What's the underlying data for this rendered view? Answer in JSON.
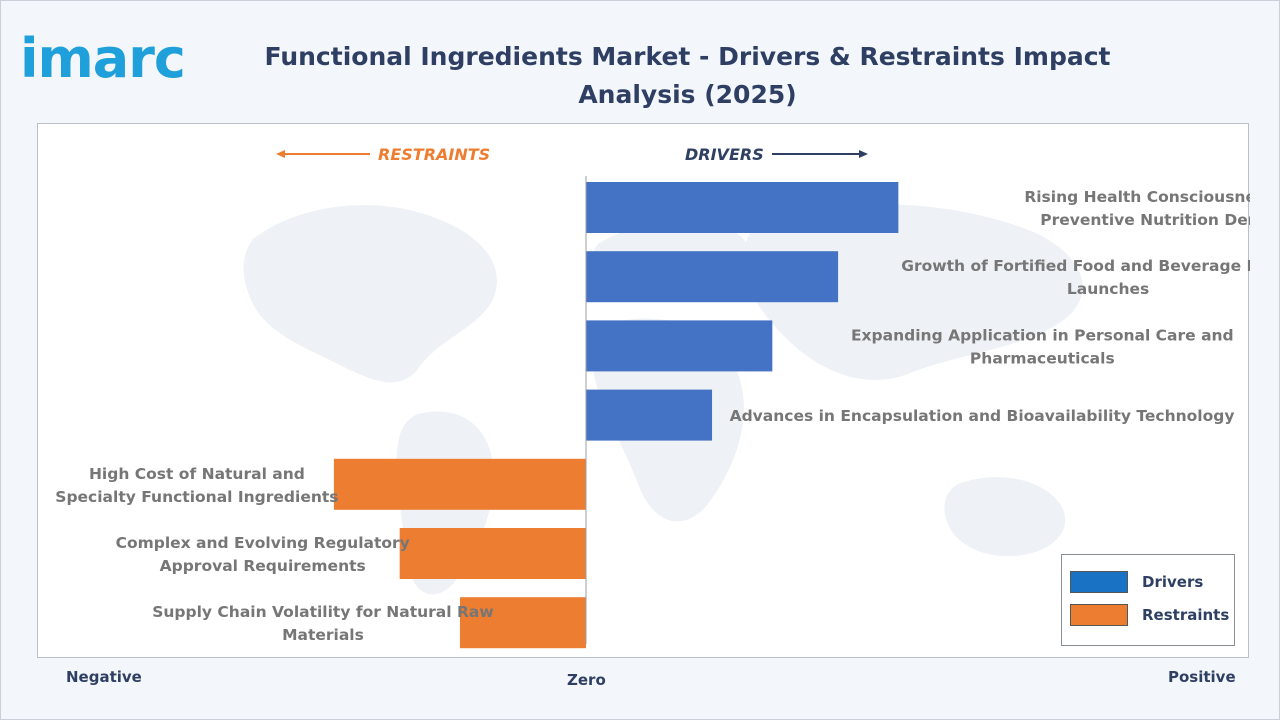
{
  "brand": {
    "logo_text": "imarc"
  },
  "title": "Functional Ingredients Market - Drivers & Restraints Impact Analysis (2025)",
  "direction_labels": {
    "restraints": "RESTRAINTS",
    "drivers": "DRIVERS"
  },
  "axis_labels": {
    "negative": "Negative",
    "zero": "Zero",
    "positive": "Positive"
  },
  "legend": [
    {
      "label": "Drivers",
      "color": "#1a72c4"
    },
    {
      "label": "Restraints",
      "color": "#ed7d31"
    }
  ],
  "colors": {
    "drivers": "#4472c4",
    "restraints": "#ed7d31",
    "arrow_drivers": "#2e3f63",
    "arrow_restraints": "#ed7d31"
  },
  "chart_data": {
    "type": "bar",
    "orientation": "horizontal",
    "title": "Functional Ingredients Market - Drivers & Restraints Impact Analysis (2025)",
    "xlabel_negative": "Negative",
    "xlabel_zero": "Zero",
    "xlabel_positive": "Positive",
    "grid": false,
    "legend_position": "bottom-right",
    "xlim": [
      -1,
      1
    ],
    "series": [
      {
        "name": "Drivers",
        "items": [
          {
            "label": [
              "Rising Health Consciousness and",
              "Preventive Nutrition Demand"
            ],
            "value": 0.57
          },
          {
            "label": [
              "Growth of Fortified Food and Beverage Product",
              "Launches"
            ],
            "value": 0.46
          },
          {
            "label": [
              "Expanding Application in Personal Care and",
              "Pharmaceuticals"
            ],
            "value": 0.34
          },
          {
            "label": [
              "Advances in Encapsulation and Bioavailability Technology"
            ],
            "value": 0.23
          }
        ]
      },
      {
        "name": "Restraints",
        "items": [
          {
            "label": [
              "High Cost of Natural and",
              "Specialty Functional Ingredients"
            ],
            "value": -0.46
          },
          {
            "label": [
              "Complex and Evolving Regulatory",
              "Approval Requirements"
            ],
            "value": -0.34
          },
          {
            "label": [
              "Supply Chain Volatility for Natural Raw",
              "Materials"
            ],
            "value": -0.23
          }
        ]
      }
    ]
  }
}
